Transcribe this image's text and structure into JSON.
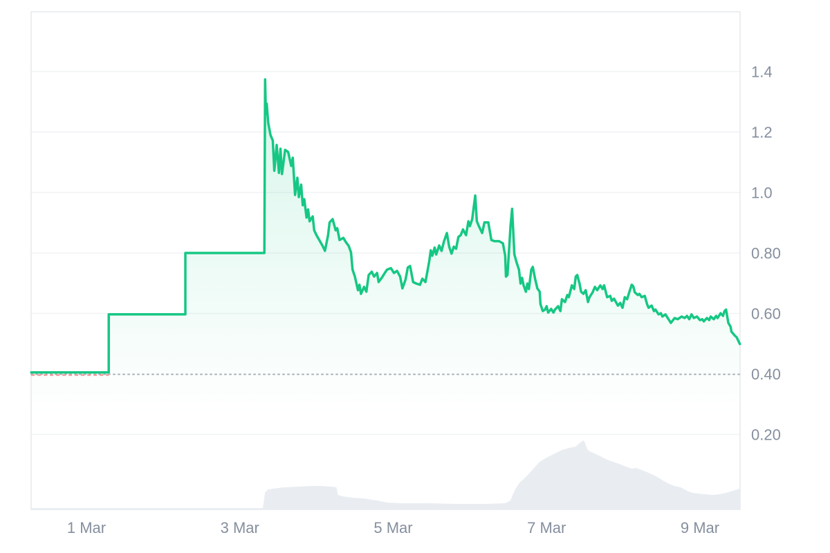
{
  "chart_data": {
    "type": "area",
    "title": "",
    "xlabel": "",
    "ylabel": "",
    "legend": null,
    "grid": "horizontal",
    "x_unit": "day of March (fractional)",
    "x_range": [
      0.28,
      9.52
    ],
    "y_range": [
      0.0,
      1.6
    ],
    "x_ticks": [
      {
        "t": 1,
        "label": "1 Mar"
      },
      {
        "t": 3,
        "label": "3 Mar"
      },
      {
        "t": 5,
        "label": "5 Mar"
      },
      {
        "t": 7,
        "label": "7 Mar"
      },
      {
        "t": 9,
        "label": "9 Mar"
      }
    ],
    "y_ticks": [
      {
        "v": 1.4,
        "label": "1.4"
      },
      {
        "v": 1.2,
        "label": "1.2"
      },
      {
        "v": 1.0,
        "label": "1.0"
      },
      {
        "v": 0.8,
        "label": "0.80"
      },
      {
        "v": 0.6,
        "label": "0.60"
      },
      {
        "v": 0.4,
        "label": "0.40"
      },
      {
        "v": 0.2,
        "label": "0.20"
      }
    ],
    "gridline_values": [
      1.4,
      1.2,
      1.0,
      0.8,
      0.6,
      0.2
    ],
    "reference_line": {
      "value": 0.4,
      "style": "dotted",
      "color": "#a9aeb8",
      "start_overlap_segment": {
        "from_t": 0.28,
        "to_t": 1.29,
        "style": "dashed",
        "color": "#ef9a9a"
      }
    },
    "price_series": {
      "name": "price",
      "color": "#16c784",
      "points": [
        [
          0.28,
          0.405
        ],
        [
          0.7,
          0.405
        ],
        [
          1.1,
          0.405
        ],
        [
          1.29,
          0.405
        ],
        [
          1.29,
          0.597
        ],
        [
          1.7,
          0.597
        ],
        [
          2.1,
          0.597
        ],
        [
          2.29,
          0.597
        ],
        [
          2.29,
          0.8
        ],
        [
          2.7,
          0.8
        ],
        [
          3.1,
          0.8
        ],
        [
          3.32,
          0.8
        ],
        [
          3.33,
          1.374
        ],
        [
          3.34,
          1.26
        ],
        [
          3.35,
          1.294
        ],
        [
          3.37,
          1.23
        ],
        [
          3.4,
          1.19
        ],
        [
          3.43,
          1.172
        ],
        [
          3.45,
          1.072
        ],
        [
          3.48,
          1.157
        ],
        [
          3.51,
          1.065
        ],
        [
          3.53,
          1.145
        ],
        [
          3.55,
          1.061
        ],
        [
          3.59,
          1.141
        ],
        [
          3.63,
          1.134
        ],
        [
          3.67,
          1.088
        ],
        [
          3.69,
          1.115
        ],
        [
          3.72,
          0.992
        ],
        [
          3.75,
          1.049
        ],
        [
          3.77,
          0.985
        ],
        [
          3.8,
          1.026
        ],
        [
          3.82,
          0.958
        ],
        [
          3.84,
          0.978
        ],
        [
          3.87,
          0.917
        ],
        [
          3.89,
          0.944
        ],
        [
          3.91,
          0.905
        ],
        [
          3.95,
          0.921
        ],
        [
          3.97,
          0.875
        ],
        [
          4.0,
          0.859
        ],
        [
          4.04,
          0.841
        ],
        [
          4.08,
          0.823
        ],
        [
          4.11,
          0.807
        ],
        [
          4.15,
          0.859
        ],
        [
          4.17,
          0.901
        ],
        [
          4.21,
          0.912
        ],
        [
          4.25,
          0.875
        ],
        [
          4.27,
          0.882
        ],
        [
          4.3,
          0.843
        ],
        [
          4.35,
          0.85
        ],
        [
          4.38,
          0.837
        ],
        [
          4.42,
          0.823
        ],
        [
          4.45,
          0.802
        ],
        [
          4.47,
          0.745
        ],
        [
          4.5,
          0.722
        ],
        [
          4.54,
          0.677
        ],
        [
          4.56,
          0.695
        ],
        [
          4.58,
          0.665
        ],
        [
          4.62,
          0.688
        ],
        [
          4.65,
          0.672
        ],
        [
          4.68,
          0.727
        ],
        [
          4.72,
          0.738
        ],
        [
          4.75,
          0.722
        ],
        [
          4.79,
          0.734
        ],
        [
          4.81,
          0.704
        ],
        [
          4.85,
          0.718
        ],
        [
          4.89,
          0.734
        ],
        [
          4.92,
          0.745
        ],
        [
          4.97,
          0.75
        ],
        [
          5.01,
          0.734
        ],
        [
          5.05,
          0.741
        ],
        [
          5.09,
          0.722
        ],
        [
          5.12,
          0.683
        ],
        [
          5.16,
          0.711
        ],
        [
          5.19,
          0.752
        ],
        [
          5.22,
          0.757
        ],
        [
          5.26,
          0.704
        ],
        [
          5.3,
          0.699
        ],
        [
          5.35,
          0.695
        ],
        [
          5.38,
          0.715
        ],
        [
          5.42,
          0.704
        ],
        [
          5.45,
          0.745
        ],
        [
          5.47,
          0.773
        ],
        [
          5.49,
          0.809
        ],
        [
          5.51,
          0.791
        ],
        [
          5.54,
          0.818
        ],
        [
          5.56,
          0.795
        ],
        [
          5.6,
          0.825
        ],
        [
          5.63,
          0.807
        ],
        [
          5.66,
          0.837
        ],
        [
          5.7,
          0.866
        ],
        [
          5.73,
          0.821
        ],
        [
          5.76,
          0.798
        ],
        [
          5.79,
          0.821
        ],
        [
          5.82,
          0.814
        ],
        [
          5.85,
          0.853
        ],
        [
          5.88,
          0.859
        ],
        [
          5.91,
          0.878
        ],
        [
          5.95,
          0.859
        ],
        [
          5.98,
          0.905
        ],
        [
          6.0,
          0.889
        ],
        [
          6.03,
          0.912
        ],
        [
          6.05,
          0.951
        ],
        [
          6.07,
          0.99
        ],
        [
          6.09,
          0.905
        ],
        [
          6.12,
          0.887
        ],
        [
          6.16,
          0.866
        ],
        [
          6.19,
          0.901
        ],
        [
          6.24,
          0.901
        ],
        [
          6.28,
          0.843
        ],
        [
          6.32,
          0.839
        ],
        [
          6.38,
          0.839
        ],
        [
          6.43,
          0.832
        ],
        [
          6.46,
          0.791
        ],
        [
          6.47,
          0.722
        ],
        [
          6.49,
          0.727
        ],
        [
          6.53,
          0.889
        ],
        [
          6.55,
          0.946
        ],
        [
          6.58,
          0.795
        ],
        [
          6.61,
          0.768
        ],
        [
          6.64,
          0.745
        ],
        [
          6.66,
          0.699
        ],
        [
          6.68,
          0.718
        ],
        [
          6.7,
          0.693
        ],
        [
          6.73,
          0.672
        ],
        [
          6.75,
          0.699
        ],
        [
          6.77,
          0.681
        ],
        [
          6.8,
          0.745
        ],
        [
          6.82,
          0.754
        ],
        [
          6.85,
          0.715
        ],
        [
          6.88,
          0.683
        ],
        [
          6.91,
          0.672
        ],
        [
          6.92,
          0.631
        ],
        [
          6.95,
          0.608
        ],
        [
          6.98,
          0.613
        ],
        [
          7.0,
          0.624
        ],
        [
          7.02,
          0.603
        ],
        [
          7.06,
          0.615
        ],
        [
          7.09,
          0.603
        ],
        [
          7.11,
          0.613
        ],
        [
          7.15,
          0.624
        ],
        [
          7.18,
          0.608
        ],
        [
          7.2,
          0.647
        ],
        [
          7.24,
          0.638
        ],
        [
          7.27,
          0.661
        ],
        [
          7.29,
          0.654
        ],
        [
          7.33,
          0.693
        ],
        [
          7.36,
          0.681
        ],
        [
          7.38,
          0.722
        ],
        [
          7.4,
          0.727
        ],
        [
          7.43,
          0.699
        ],
        [
          7.45,
          0.672
        ],
        [
          7.48,
          0.665
        ],
        [
          7.51,
          0.677
        ],
        [
          7.54,
          0.638
        ],
        [
          7.56,
          0.654
        ],
        [
          7.6,
          0.67
        ],
        [
          7.63,
          0.688
        ],
        [
          7.66,
          0.677
        ],
        [
          7.7,
          0.693
        ],
        [
          7.73,
          0.681
        ],
        [
          7.75,
          0.693
        ],
        [
          7.79,
          0.654
        ],
        [
          7.83,
          0.658
        ],
        [
          7.85,
          0.642
        ],
        [
          7.88,
          0.649
        ],
        [
          7.93,
          0.626
        ],
        [
          7.96,
          0.635
        ],
        [
          7.99,
          0.619
        ],
        [
          8.02,
          0.654
        ],
        [
          8.05,
          0.647
        ],
        [
          8.08,
          0.672
        ],
        [
          8.11,
          0.695
        ],
        [
          8.13,
          0.69
        ],
        [
          8.15,
          0.67
        ],
        [
          8.19,
          0.661
        ],
        [
          8.21,
          0.665
        ],
        [
          8.24,
          0.654
        ],
        [
          8.28,
          0.658
        ],
        [
          8.31,
          0.631
        ],
        [
          8.33,
          0.619
        ],
        [
          8.37,
          0.626
        ],
        [
          8.4,
          0.608
        ],
        [
          8.42,
          0.613
        ],
        [
          8.46,
          0.597
        ],
        [
          8.49,
          0.601
        ],
        [
          8.51,
          0.59
        ],
        [
          8.55,
          0.597
        ],
        [
          8.58,
          0.585
        ],
        [
          8.62,
          0.569
        ],
        [
          8.67,
          0.585
        ],
        [
          8.71,
          0.581
        ],
        [
          8.76,
          0.59
        ],
        [
          8.8,
          0.585
        ],
        [
          8.83,
          0.592
        ],
        [
          8.86,
          0.581
        ],
        [
          8.89,
          0.597
        ],
        [
          8.92,
          0.585
        ],
        [
          8.96,
          0.59
        ],
        [
          9.0,
          0.578
        ],
        [
          9.03,
          0.581
        ],
        [
          9.05,
          0.574
        ],
        [
          9.09,
          0.585
        ],
        [
          9.12,
          0.578
        ],
        [
          9.14,
          0.59
        ],
        [
          9.18,
          0.581
        ],
        [
          9.21,
          0.592
        ],
        [
          9.23,
          0.585
        ],
        [
          9.27,
          0.601
        ],
        [
          9.3,
          0.592
        ],
        [
          9.32,
          0.608
        ],
        [
          9.34,
          0.613
        ],
        [
          9.37,
          0.569
        ],
        [
          9.4,
          0.556
        ],
        [
          9.41,
          0.54
        ],
        [
          9.45,
          0.528
        ],
        [
          9.48,
          0.521
        ],
        [
          9.5,
          0.51
        ],
        [
          9.52,
          0.499
        ]
      ]
    },
    "volume_series": {
      "name": "volume",
      "color": "#e9edf2",
      "unit": "relative (100 = max bar)",
      "points": [
        [
          0.28,
          2
        ],
        [
          1.0,
          2
        ],
        [
          2.0,
          2
        ],
        [
          3.0,
          2
        ],
        [
          3.3,
          2
        ],
        [
          3.33,
          25
        ],
        [
          3.37,
          29
        ],
        [
          3.43,
          30
        ],
        [
          3.57,
          32
        ],
        [
          3.75,
          33
        ],
        [
          3.93,
          34
        ],
        [
          4.07,
          34
        ],
        [
          4.2,
          33
        ],
        [
          4.26,
          32
        ],
        [
          4.28,
          21
        ],
        [
          4.34,
          19
        ],
        [
          4.47,
          17
        ],
        [
          4.61,
          16
        ],
        [
          4.79,
          13
        ],
        [
          4.92,
          10
        ],
        [
          5.1,
          9
        ],
        [
          5.46,
          9
        ],
        [
          5.82,
          8
        ],
        [
          6.19,
          8
        ],
        [
          6.46,
          9
        ],
        [
          6.53,
          13
        ],
        [
          6.56,
          22
        ],
        [
          6.6,
          31
        ],
        [
          6.65,
          39
        ],
        [
          6.73,
          47
        ],
        [
          6.82,
          58
        ],
        [
          6.91,
          69
        ],
        [
          7.0,
          75
        ],
        [
          7.09,
          80
        ],
        [
          7.2,
          86
        ],
        [
          7.29,
          89
        ],
        [
          7.38,
          91
        ],
        [
          7.43,
          96
        ],
        [
          7.48,
          100
        ],
        [
          7.5,
          97
        ],
        [
          7.53,
          87
        ],
        [
          7.56,
          84
        ],
        [
          7.63,
          81
        ],
        [
          7.7,
          77
        ],
        [
          7.77,
          73
        ],
        [
          7.84,
          70
        ],
        [
          7.92,
          67
        ],
        [
          7.99,
          64
        ],
        [
          8.06,
          61
        ],
        [
          8.11,
          59
        ],
        [
          8.17,
          60
        ],
        [
          8.24,
          57
        ],
        [
          8.31,
          54
        ],
        [
          8.39,
          50
        ],
        [
          8.46,
          46
        ],
        [
          8.53,
          41
        ],
        [
          8.6,
          37
        ],
        [
          8.67,
          34
        ],
        [
          8.75,
          32
        ],
        [
          8.8,
          29
        ],
        [
          8.85,
          26
        ],
        [
          8.91,
          24
        ],
        [
          8.98,
          23
        ],
        [
          9.07,
          22
        ],
        [
          9.16,
          21
        ],
        [
          9.25,
          22
        ],
        [
          9.34,
          24
        ],
        [
          9.43,
          27
        ],
        [
          9.52,
          30
        ]
      ]
    }
  },
  "colors": {
    "background": "#ffffff",
    "line_green": "#16c784",
    "area_fill_top": "rgba(22,199,132,0.18)",
    "area_fill_bottom": "rgba(22,199,132,0)",
    "volume_fill": "#e9edf2",
    "grid": "#f0f2f5",
    "plot_border": "#e6e9ed",
    "axis_text": "#858f9e",
    "ref_dotted": "#a9aeb8",
    "ref_dashed_red": "#ef9a9a"
  }
}
